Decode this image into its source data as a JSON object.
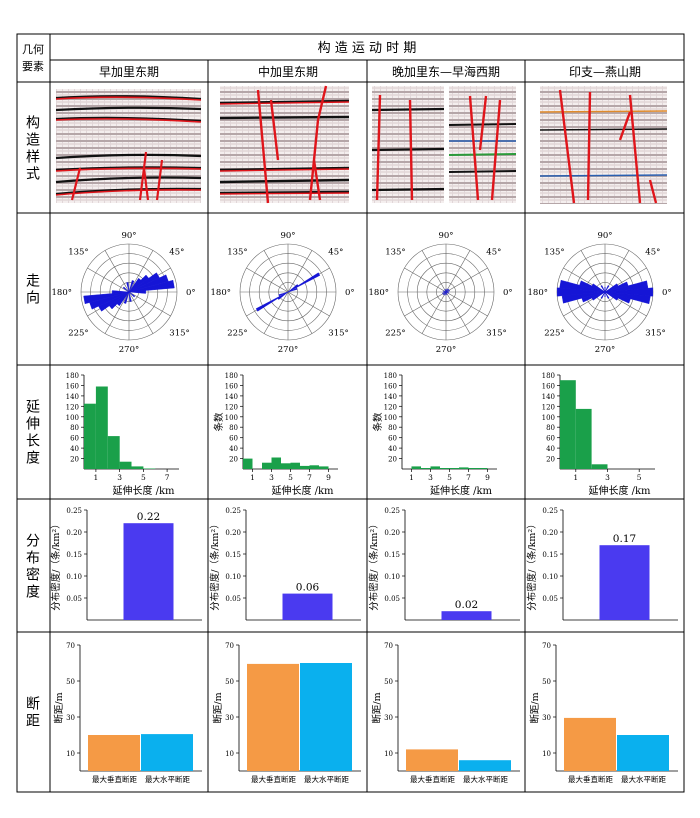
{
  "header": {
    "corner_line1": "几何",
    "corner_line2": "要素",
    "title": "构 造 运 动 时 期",
    "periods": [
      "早加里东期",
      "中加里东期",
      "晚加里东—早海西期",
      "印支—燕山期"
    ]
  },
  "row_labels": {
    "structure_style": "构造样式",
    "strike": "走向",
    "extension_length": "延伸长度",
    "distribution_density": "分布密度",
    "fault_displacement": "断距"
  },
  "strike_rose": {
    "angle_labels": [
      "0°",
      "45°",
      "90°",
      "135°",
      "180°",
      "225°",
      "270°",
      "315°"
    ],
    "panels": [
      {
        "petals": [
          {
            "angle": 10,
            "length": 0.95,
            "width": 10
          },
          {
            "angle": 20,
            "length": 0.85,
            "width": 10
          },
          {
            "angle": 30,
            "length": 0.7,
            "width": 10
          },
          {
            "angle": 40,
            "length": 0.5,
            "width": 10
          },
          {
            "angle": 50,
            "length": 0.35,
            "width": 10
          },
          {
            "angle": 70,
            "length": 0.25,
            "width": 10
          },
          {
            "angle": 100,
            "length": 0.2,
            "width": 10
          },
          {
            "angle": 140,
            "length": 0.15,
            "width": 10
          },
          {
            "angle": 0,
            "length": 0.35,
            "width": 10
          }
        ]
      },
      {
        "petals": [
          {
            "angle": 30,
            "length": 0.75,
            "width": 5
          },
          {
            "angle": 35,
            "length": 0.25,
            "width": 8
          },
          {
            "angle": 20,
            "length": 0.2,
            "width": 8
          }
        ]
      },
      {
        "petals": [
          {
            "angle": 20,
            "length": 0.08,
            "width": 10
          },
          {
            "angle": 45,
            "length": 0.08,
            "width": 10
          },
          {
            "angle": 70,
            "length": 0.07,
            "width": 10
          },
          {
            "angle": 110,
            "length": 0.06,
            "width": 10
          },
          {
            "angle": 160,
            "length": 0.06,
            "width": 10
          }
        ]
      },
      {
        "petals": [
          {
            "angle": 0,
            "length": 1.0,
            "width": 10
          },
          {
            "angle": 10,
            "length": 0.9,
            "width": 10
          },
          {
            "angle": 170,
            "length": 0.95,
            "width": 10
          },
          {
            "angle": 20,
            "length": 0.5,
            "width": 10
          },
          {
            "angle": 160,
            "length": 0.55,
            "width": 10
          },
          {
            "angle": 30,
            "length": 0.3,
            "width": 10
          },
          {
            "angle": 150,
            "length": 0.3,
            "width": 10
          },
          {
            "angle": 60,
            "length": 0.15,
            "width": 10
          },
          {
            "angle": 120,
            "length": 0.15,
            "width": 10
          },
          {
            "angle": 90,
            "length": 0.1,
            "width": 10
          }
        ]
      }
    ]
  },
  "chart_data": [
    {
      "type": "bar",
      "period": "早加里东期",
      "metric": "延伸长度",
      "xlabel": "延伸长度 /km",
      "ylabel": "",
      "x": [
        0.5,
        1.5,
        2.5,
        3.5,
        4.5,
        5.5
      ],
      "values": [
        125,
        158,
        63,
        14,
        5,
        1
      ],
      "xlim": [
        0,
        8
      ],
      "xticks": [
        "1",
        "3",
        "5",
        "7"
      ],
      "ylim": [
        0,
        180
      ],
      "yticks": [
        "20",
        "40",
        "60",
        "80",
        "100",
        "120",
        "140",
        "160",
        "180"
      ],
      "color": "#1aa04a"
    },
    {
      "type": "bar",
      "period": "中加里东期",
      "metric": "延伸长度",
      "xlabel": "延伸长度 /km",
      "ylabel": "条数",
      "x": [
        0.5,
        1.5,
        2.5,
        3.5,
        4.5,
        5.5,
        6.5,
        7.5,
        8.5,
        9.5
      ],
      "values": [
        20,
        0,
        12,
        22,
        11,
        12,
        6,
        7,
        5,
        0
      ],
      "xlim": [
        0,
        10
      ],
      "xticks": [
        "1",
        "3",
        "5",
        "7",
        "9"
      ],
      "ylim": [
        0,
        180
      ],
      "yticks": [
        "20",
        "40",
        "60",
        "80",
        "100",
        "120",
        "140",
        "160",
        "180"
      ],
      "color": "#1aa04a"
    },
    {
      "type": "bar",
      "period": "晚加里东—早海西期",
      "metric": "延伸长度",
      "xlabel": "延伸长度 /km",
      "ylabel": "条数",
      "x": [
        0.5,
        1.5,
        2.5,
        3.5,
        4.5,
        5.5,
        6.5,
        7.5,
        8.5,
        9.5
      ],
      "values": [
        0,
        5,
        2,
        5,
        2,
        2,
        3,
        2,
        2,
        0
      ],
      "xlim": [
        0,
        10
      ],
      "xticks": [
        "1",
        "3",
        "5",
        "7",
        "9"
      ],
      "ylim": [
        0,
        180
      ],
      "yticks": [
        "20",
        "40",
        "60",
        "80",
        "100",
        "120",
        "140",
        "160",
        "180"
      ],
      "color": "#1aa04a"
    },
    {
      "type": "bar",
      "period": "印支—燕山期",
      "metric": "延伸长度",
      "xlabel": "延伸长度 /km",
      "ylabel": "",
      "x": [
        0.5,
        1.5,
        2.5
      ],
      "values": [
        170,
        115,
        9
      ],
      "xlim": [
        0,
        6
      ],
      "xticks": [
        "1",
        "3",
        "5"
      ],
      "ylim": [
        0,
        180
      ],
      "yticks": [
        "20",
        "40",
        "60",
        "80",
        "100",
        "120",
        "140",
        "160",
        "180"
      ],
      "color": "#1aa04a"
    },
    {
      "type": "bar",
      "period": "早加里东期",
      "metric": "分布密度",
      "ylabel": "分布密度/（条/km²）",
      "categories": [
        ""
      ],
      "values": [
        0.22
      ],
      "labels": [
        "0.22"
      ],
      "ylim": [
        0,
        0.25
      ],
      "yticks": [
        "0.05",
        "0.10",
        "0.15",
        "0.20",
        "0.25"
      ],
      "color": "#4a3af0"
    },
    {
      "type": "bar",
      "period": "中加里东期",
      "metric": "分布密度",
      "ylabel": "分布密度/（条/km²）",
      "categories": [
        ""
      ],
      "values": [
        0.06
      ],
      "labels": [
        "0.06"
      ],
      "ylim": [
        0,
        0.25
      ],
      "yticks": [
        "0.05",
        "0.10",
        "0.15",
        "0.20",
        "0.25"
      ],
      "color": "#4a3af0"
    },
    {
      "type": "bar",
      "period": "晚加里东—早海西期",
      "metric": "分布密度",
      "ylabel": "分布密度/（条/km²）",
      "categories": [
        ""
      ],
      "values": [
        0.02
      ],
      "labels": [
        "0.02"
      ],
      "ylim": [
        0,
        0.25
      ],
      "yticks": [
        "0.05",
        "0.10",
        "0.15",
        "0.20",
        "0.25"
      ],
      "color": "#4a3af0"
    },
    {
      "type": "bar",
      "period": "印支—燕山期",
      "metric": "分布密度",
      "ylabel": "分布密度/（条/km²）",
      "categories": [
        ""
      ],
      "values": [
        0.17
      ],
      "labels": [
        "0.17"
      ],
      "ylim": [
        0,
        0.25
      ],
      "yticks": [
        "0.05",
        "0.10",
        "0.15",
        "0.20",
        "0.25"
      ],
      "color": "#4a3af0"
    },
    {
      "type": "bar",
      "period": "早加里东期",
      "metric": "断距",
      "ylabel": "断距/m",
      "categories": [
        "最大垂直断距",
        "最大水平断距"
      ],
      "values": [
        20,
        20.5
      ],
      "colors": [
        "#f59a45",
        "#0ab0ee"
      ],
      "ylim": [
        0,
        70
      ],
      "yticks": [
        "10",
        "30",
        "50",
        "70"
      ]
    },
    {
      "type": "bar",
      "period": "中加里东期",
      "metric": "断距",
      "ylabel": "断距/m",
      "categories": [
        "最大垂直断距",
        "最大水平断距"
      ],
      "values": [
        59.5,
        60
      ],
      "colors": [
        "#f59a45",
        "#0ab0ee"
      ],
      "ylim": [
        0,
        70
      ],
      "yticks": [
        "10",
        "30",
        "50",
        "70"
      ]
    },
    {
      "type": "bar",
      "period": "晚加里东—早海西期",
      "metric": "断距",
      "ylabel": "断距/m",
      "categories": [
        "最大垂直断距",
        "最大水平断距"
      ],
      "values": [
        12,
        6
      ],
      "colors": [
        "#f59a45",
        "#0ab0ee"
      ],
      "ylim": [
        0,
        70
      ],
      "yticks": [
        "10",
        "30",
        "50",
        "70"
      ]
    },
    {
      "type": "bar",
      "period": "印支—燕山期",
      "metric": "断距",
      "ylabel": "断距/m",
      "categories": [
        "最大垂直断距",
        "最大水平断距"
      ],
      "values": [
        29.5,
        20
      ],
      "colors": [
        "#f59a45",
        "#0ab0ee"
      ],
      "ylim": [
        0,
        70
      ],
      "yticks": [
        "10",
        "30",
        "50",
        "70"
      ]
    }
  ]
}
